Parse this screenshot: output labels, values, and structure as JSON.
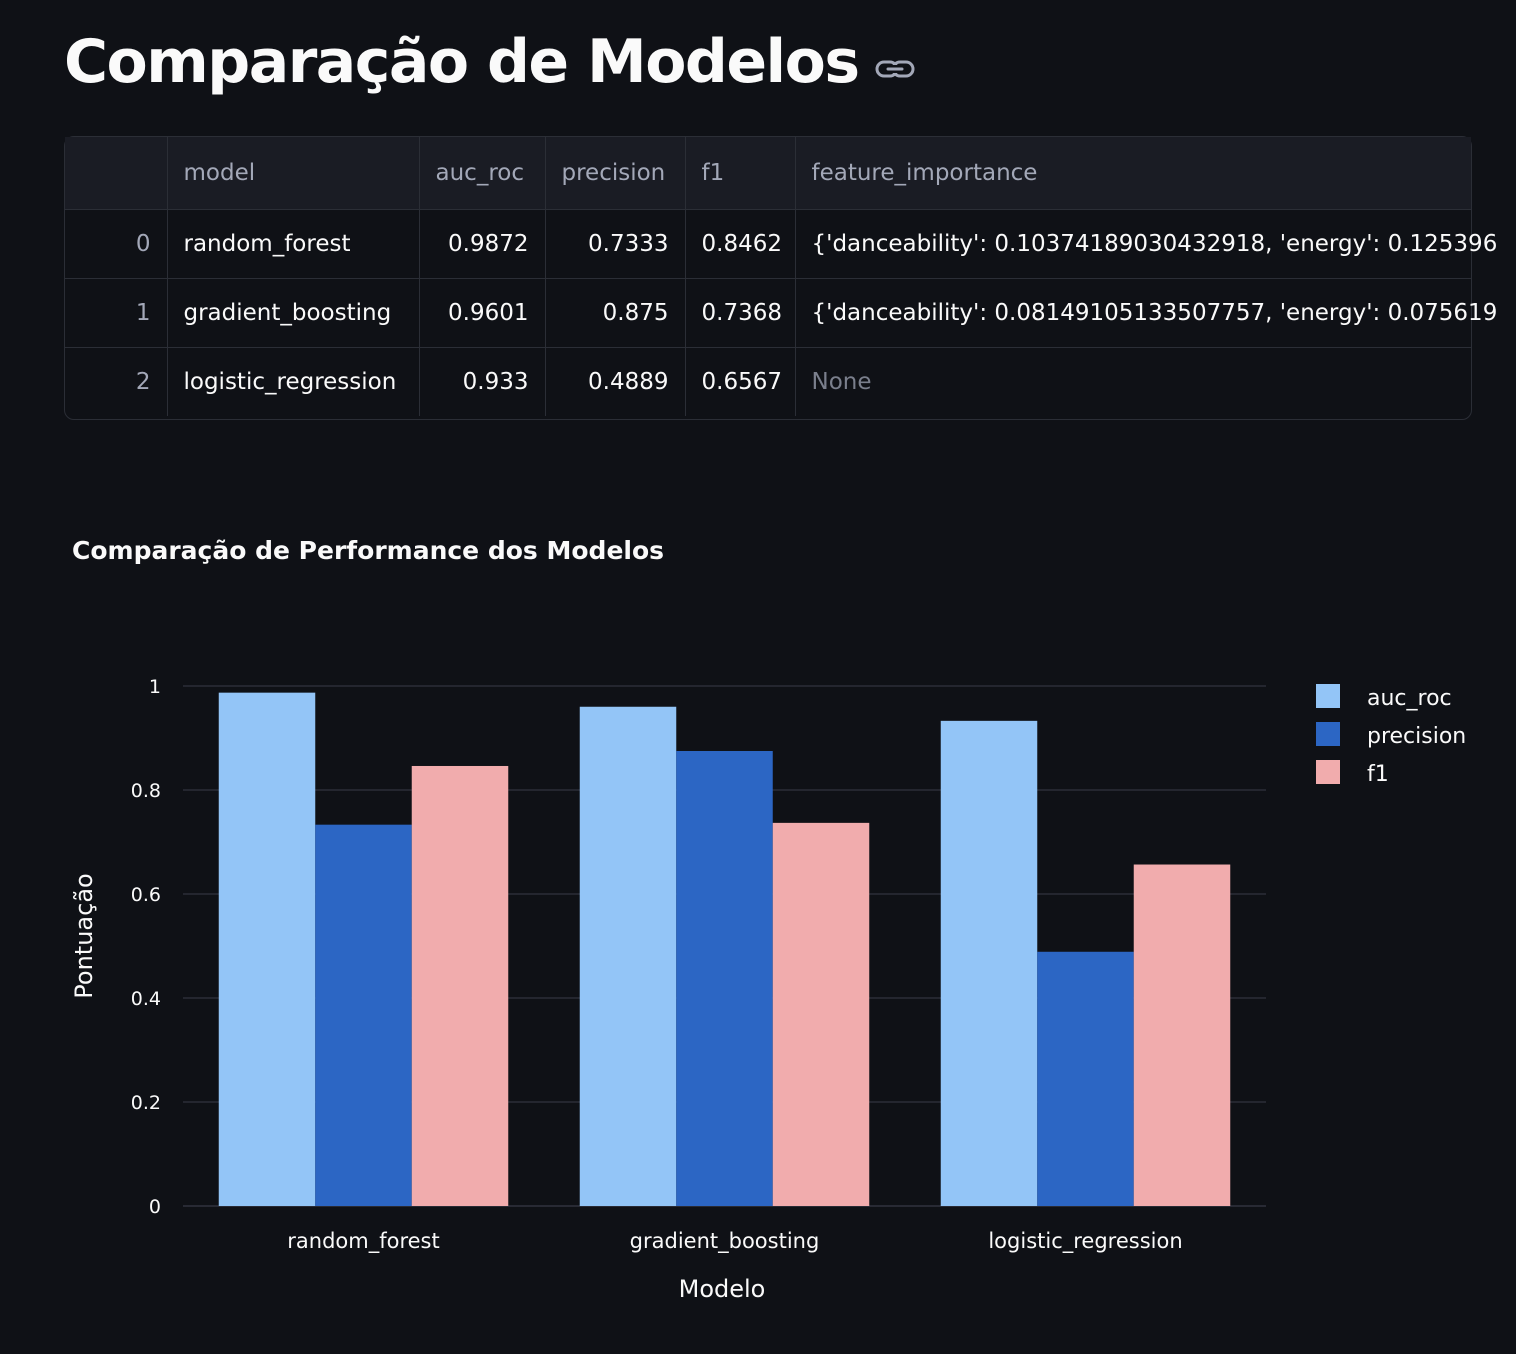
{
  "page": {
    "title": "Comparação de Modelos",
    "title_link_icon": "link-icon"
  },
  "table": {
    "columns": [
      "",
      "model",
      "auc_roc",
      "precision",
      "f1",
      "feature_importance"
    ],
    "rows": [
      {
        "index": "0",
        "model": "random_forest",
        "auc_roc": "0.9872",
        "precision": "0.7333",
        "f1": "0.8462",
        "feature_importance": "{'danceability': 0.10374189030432918, 'energy': 0.125396"
      },
      {
        "index": "1",
        "model": "gradient_boosting",
        "auc_roc": "0.9601",
        "precision": "0.875",
        "f1": "0.7368",
        "feature_importance": "{'danceability': 0.08149105133507757, 'energy': 0.075619"
      },
      {
        "index": "2",
        "model": "logistic_regression",
        "auc_roc": "0.933",
        "precision": "0.4889",
        "f1": "0.6567",
        "feature_importance": "None"
      }
    ]
  },
  "chart_data": {
    "type": "bar",
    "title": "Comparação de Performance dos Modelos",
    "xlabel": "Modelo",
    "ylabel": "Pontuação",
    "categories": [
      "random_forest",
      "gradient_boosting",
      "logistic_regression"
    ],
    "series": [
      {
        "name": "auc_roc",
        "values": [
          0.9872,
          0.9601,
          0.933
        ],
        "color": "#93c5f7"
      },
      {
        "name": "precision",
        "values": [
          0.7333,
          0.875,
          0.4889
        ],
        "color": "#2c66c4"
      },
      {
        "name": "f1",
        "values": [
          0.8462,
          0.7368,
          0.6567
        ],
        "color": "#f1acad"
      }
    ],
    "ylim": [
      0,
      1
    ],
    "yticks": [
      0,
      0.2,
      0.4,
      0.6,
      0.8,
      1
    ],
    "ytick_labels": [
      "0",
      "0.2",
      "0.4",
      "0.6",
      "0.8",
      "1"
    ],
    "grid": true,
    "legend_position": "right",
    "colors": {
      "background": "#0f1116",
      "grid": "#31333f",
      "text": "#fafafa"
    }
  }
}
